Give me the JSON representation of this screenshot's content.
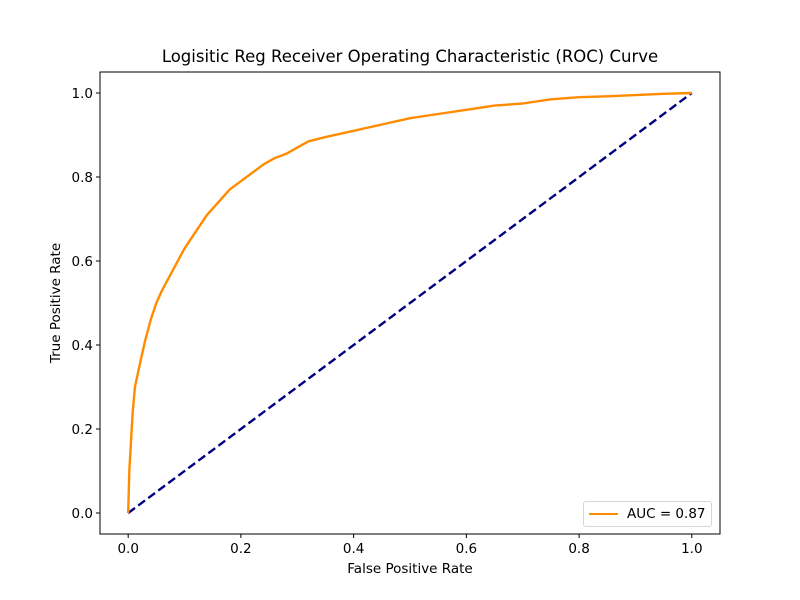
{
  "chart_data": {
    "type": "line",
    "title": "Logisitic Reg Receiver Operating Characteristic (ROC) Curve",
    "xlabel": "False Positive Rate",
    "ylabel": "True Positive Rate",
    "xlim": [
      -0.05,
      1.05
    ],
    "ylim": [
      -0.05,
      1.05
    ],
    "xticks": [
      "0.0",
      "0.2",
      "0.4",
      "0.6",
      "0.8",
      "1.0"
    ],
    "yticks": [
      "0.0",
      "0.2",
      "0.4",
      "0.6",
      "0.8",
      "1.0"
    ],
    "grid": false,
    "legend_position": "lower-right",
    "series": [
      {
        "name": "AUC = 0.87",
        "style": "solid",
        "color": "#ff8c00",
        "x": [
          0.0,
          0.002,
          0.005,
          0.008,
          0.012,
          0.02,
          0.03,
          0.04,
          0.05,
          0.06,
          0.08,
          0.1,
          0.12,
          0.14,
          0.16,
          0.18,
          0.2,
          0.22,
          0.24,
          0.26,
          0.28,
          0.3,
          0.32,
          0.35,
          0.4,
          0.45,
          0.5,
          0.55,
          0.6,
          0.65,
          0.7,
          0.75,
          0.8,
          0.85,
          0.9,
          0.95,
          1.0
        ],
        "y": [
          0.0,
          0.1,
          0.17,
          0.24,
          0.3,
          0.35,
          0.41,
          0.46,
          0.5,
          0.53,
          0.58,
          0.63,
          0.67,
          0.71,
          0.74,
          0.77,
          0.79,
          0.81,
          0.83,
          0.845,
          0.855,
          0.87,
          0.885,
          0.895,
          0.91,
          0.925,
          0.94,
          0.95,
          0.96,
          0.97,
          0.975,
          0.985,
          0.99,
          0.992,
          0.995,
          0.998,
          1.0
        ]
      },
      {
        "style": "dashed",
        "color": "#000080",
        "x": [
          0.0,
          1.0
        ],
        "y": [
          0.0,
          1.0
        ]
      }
    ]
  }
}
